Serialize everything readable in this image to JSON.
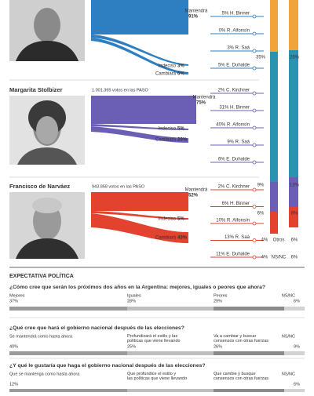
{
  "candidates": [
    {
      "flows": [
        {
          "label": "Mantendrá",
          "value": "91%"
        },
        {
          "label": "Indeciso",
          "value": "3%"
        },
        {
          "label": "Cambiará",
          "value": "6%"
        }
      ],
      "destinations": [
        "5% H. Binner",
        "0% R. Alfonsín",
        "3% R. Saá",
        "5% E. Duhalde"
      ],
      "columns": {
        "left": "35%",
        "right": "26%"
      }
    },
    {
      "name": "Margarita Stolbizer",
      "votes": "1.001.365 votos en las PASO",
      "flows": [
        {
          "label": "Mantendrá",
          "value": "75%"
        },
        {
          "label": "Indeciso",
          "value": "5%"
        },
        {
          "label": "Cambiará",
          "value": "20%"
        }
      ],
      "destinations": [
        "2% C. Kirchner",
        "31% H. Binner",
        "40% R. Alfonsín",
        "9% R. Saá",
        "6% E. Duhalde"
      ],
      "columns": {
        "left": "9%",
        "right": "13%"
      }
    },
    {
      "name": "Francisco de Narváez",
      "votes": "943.858 votos en las PASO",
      "flows": [
        {
          "label": "Mantendrá",
          "value": "52%"
        },
        {
          "label": "Indeciso",
          "value": "5%"
        },
        {
          "label": "Cambiará",
          "value": "43%"
        }
      ],
      "destinations": [
        "2% C. Kirchner",
        "6% H. Binner",
        "10% R. Alfonsín",
        "13% R. Saá",
        "11% E. Duhalde"
      ],
      "columns": {
        "left": "6%",
        "right": "8%"
      }
    }
  ],
  "column_rows": [
    {
      "left": "4%",
      "label": "Otros",
      "right": "6%"
    },
    {
      "left": "4%",
      "label": "NS/NC",
      "right": "6%"
    }
  ],
  "survey": {
    "title": "EXPECTATIVA POLÍTICA",
    "questions": [
      {
        "question": "¿Cómo cree que serán los próximos dos años en la Argentina: mejores, iguales o peores que ahora?",
        "answers": [
          {
            "label": "Mejores",
            "value": "37%"
          },
          {
            "label": "Iguales",
            "value": "28%"
          },
          {
            "label": "Peores",
            "value": "29%"
          },
          {
            "label": "NS/NC",
            "value": "6%"
          }
        ]
      },
      {
        "question": "¿Qué cree que hará el gobierno nacional después de las elecciones?",
        "answers": [
          {
            "label": "Se mantendrá como hasta ahora",
            "value": "40%"
          },
          {
            "label": "Profundizará el estilo y las políticas que viene llevando",
            "value": "25%"
          },
          {
            "label": "Va a cambiar y buscar consensos con otras fuerzas",
            "value": "26%"
          },
          {
            "label": "NS/NC",
            "value": "9%"
          }
        ]
      },
      {
        "question": "¿Y qué le gustaría que haga el gobierno nacional después de las elecciones?",
        "answers": [
          {
            "label": "Que se mantenga como hasta ahora",
            "value": "12%"
          },
          {
            "label": "Que profundice el estilo y las políticas que viene llevando"
          },
          {
            "label": "Que cambie y busque consensos con otras fuerzas"
          },
          {
            "label": "NS/NC",
            "value": "6%"
          }
        ]
      }
    ]
  }
}
